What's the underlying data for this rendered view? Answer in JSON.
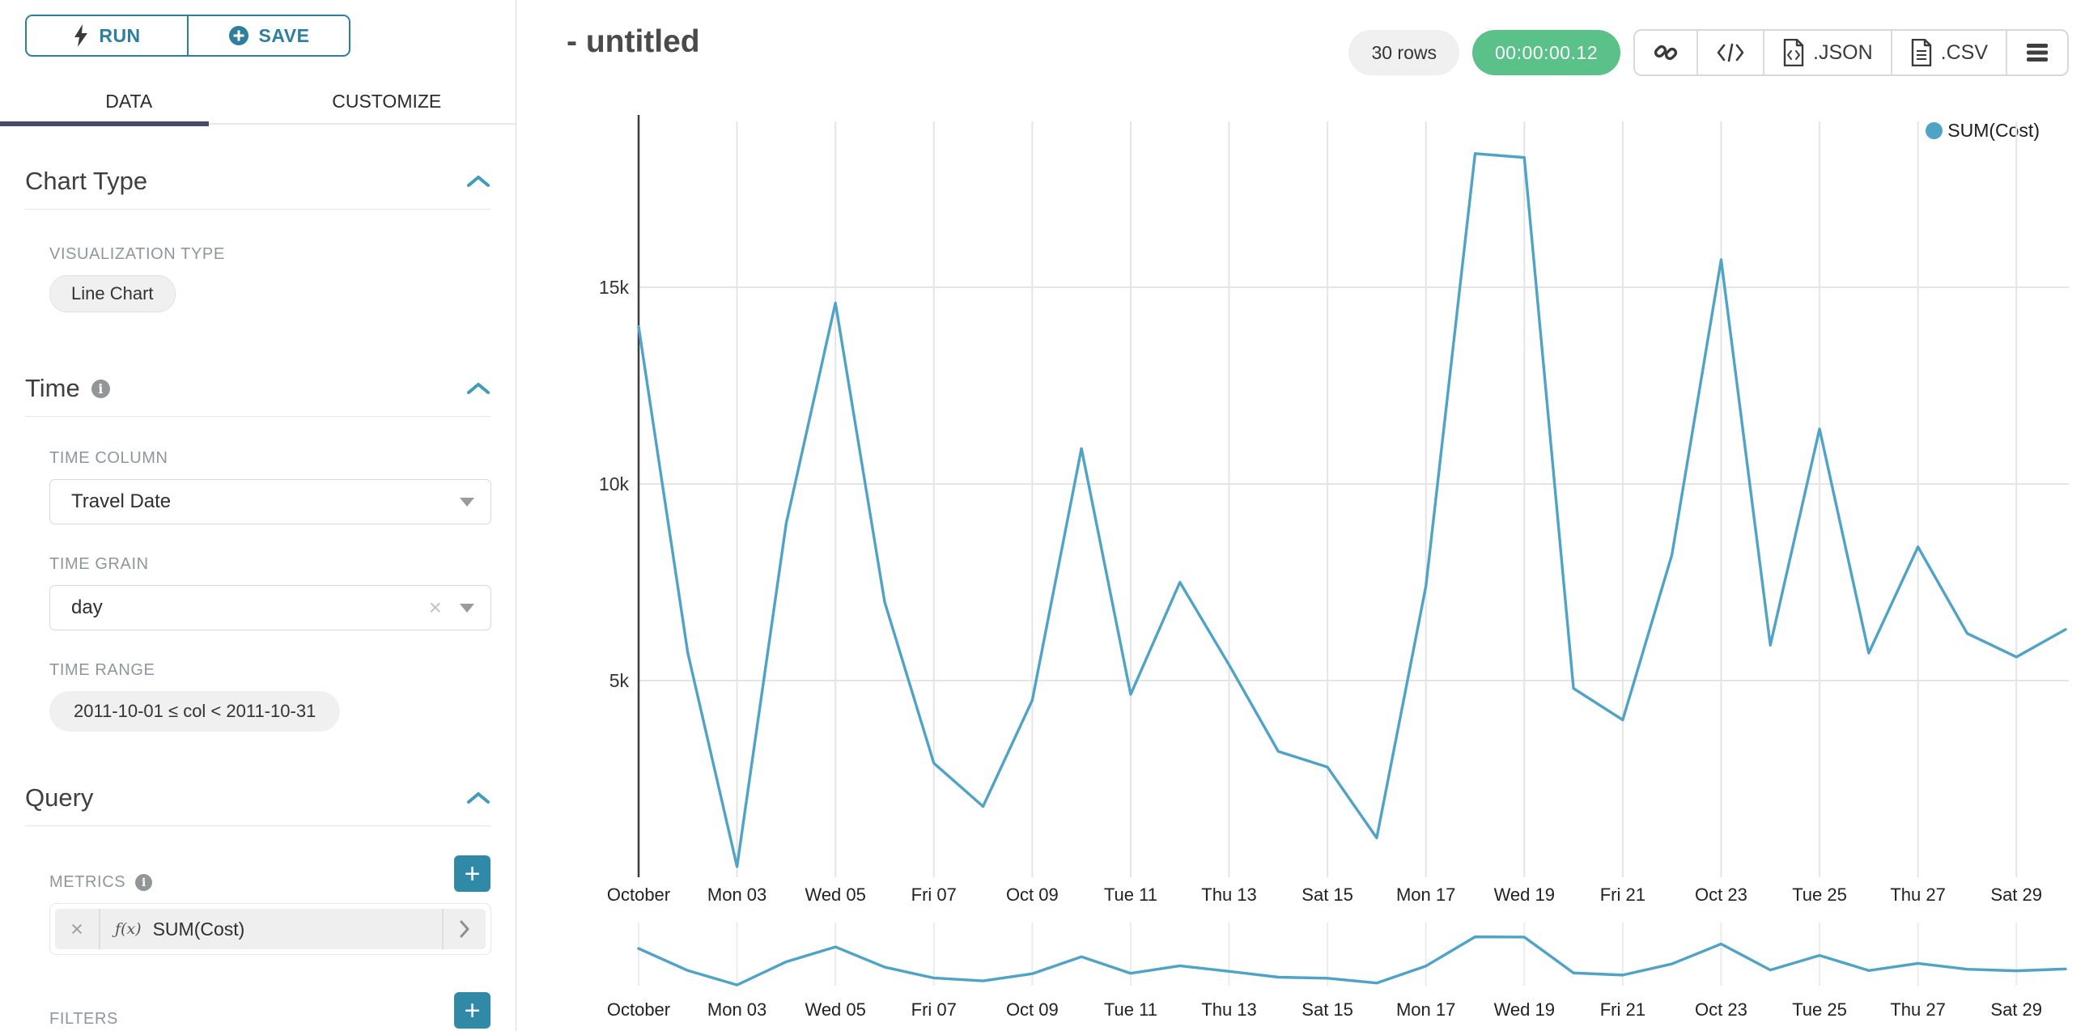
{
  "sidebar": {
    "run_label": "RUN",
    "save_label": "SAVE",
    "tabs": {
      "data": "DATA",
      "customize": "CUSTOMIZE"
    },
    "chart_type": {
      "title": "Chart Type",
      "viz_label": "VISUALIZATION TYPE",
      "viz_value": "Line Chart"
    },
    "time": {
      "title": "Time",
      "column_label": "TIME COLUMN",
      "column_value": "Travel Date",
      "grain_label": "TIME GRAIN",
      "grain_value": "day",
      "range_label": "TIME RANGE",
      "range_value": "2011-10-01 ≤ col < 2011-10-31"
    },
    "query": {
      "title": "Query",
      "metrics_label": "METRICS",
      "metric_fn": "ƒ(x)",
      "metric_value": "SUM(Cost)",
      "filters_label": "FILTERS"
    }
  },
  "header": {
    "title": "- untitled",
    "rows_badge": "30 rows",
    "timer_badge": "00:00:00.12",
    "json_label": ".JSON",
    "csv_label": ".CSV"
  },
  "legend_label": "SUM(Cost)",
  "colors": {
    "accent": "#2e7e9d",
    "plus_button": "#2f89a7",
    "tab_underline": "#474b6b",
    "timer_green": "#5ac189",
    "line": "#4fa3c6",
    "grid": "#e5e5e5",
    "mini_grid": "#ececec",
    "axis": "#3c3c3c",
    "tick_text": "#222222",
    "ytick_text": "#333333"
  },
  "chart_data": {
    "type": "line",
    "title": "",
    "xlabel": "",
    "ylabel": "",
    "grid": true,
    "legend": {
      "position": "top-right",
      "entries": [
        "SUM(Cost)"
      ]
    },
    "x": [
      "2011-10-01",
      "2011-10-02",
      "2011-10-03",
      "2011-10-04",
      "2011-10-05",
      "2011-10-06",
      "2011-10-07",
      "2011-10-08",
      "2011-10-09",
      "2011-10-10",
      "2011-10-11",
      "2011-10-12",
      "2011-10-13",
      "2011-10-14",
      "2011-10-15",
      "2011-10-16",
      "2011-10-17",
      "2011-10-18",
      "2011-10-19",
      "2011-10-20",
      "2011-10-21",
      "2011-10-22",
      "2011-10-23",
      "2011-10-24",
      "2011-10-25",
      "2011-10-26",
      "2011-10-27",
      "2011-10-28",
      "2011-10-29",
      "2011-10-30"
    ],
    "series": [
      {
        "name": "SUM(Cost)",
        "values": [
          14000,
          5700,
          270,
          9000,
          14600,
          7000,
          2900,
          1800,
          4500,
          10900,
          4650,
          7500,
          5400,
          3200,
          2800,
          1000,
          7400,
          18400,
          18300,
          4800,
          4000,
          8200,
          15700,
          5900,
          11400,
          5700,
          8400,
          6200,
          5600,
          6300
        ]
      }
    ],
    "x_tick_labels": [
      "October",
      "Mon 03",
      "Wed 05",
      "Fri 07",
      "Oct 09",
      "Tue 11",
      "Thu 13",
      "Sat 15",
      "Mon 17",
      "Wed 19",
      "Fri 21",
      "Oct 23",
      "Tue 25",
      "Thu 27",
      "Sat 29"
    ],
    "y_ticks": [
      5000,
      10000,
      15000
    ],
    "y_tick_labels": [
      "5k",
      "10k",
      "15k"
    ],
    "ylim": [
      0,
      19200
    ],
    "has_brush_minichart": true
  }
}
